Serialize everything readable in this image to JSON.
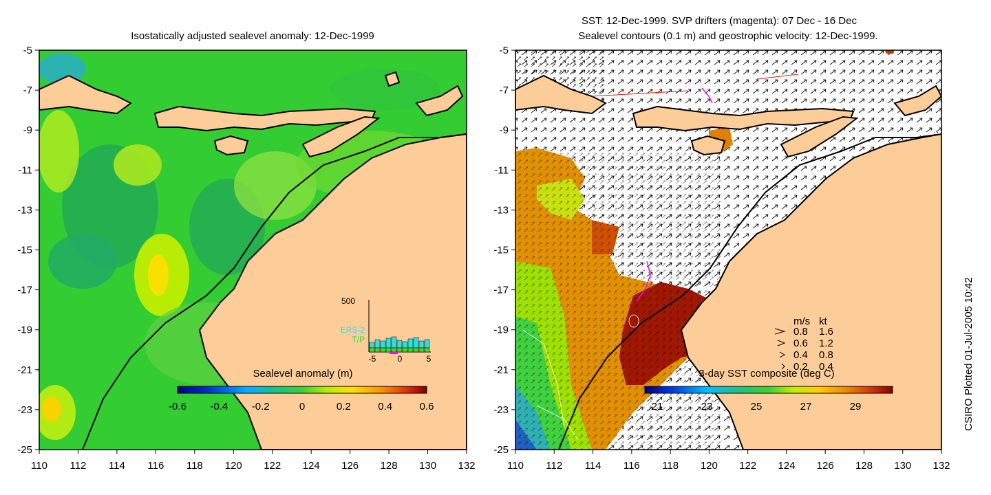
{
  "left_panel": {
    "title": "Isostatically adjusted sealevel anomaly: 12-Dec-1999",
    "colorbar": {
      "label": "Sealevel anomaly (m)",
      "ticks": [
        "-0.6",
        "-0.4",
        "-0.2",
        "0",
        "0.2",
        "0.4",
        "0.6"
      ],
      "range": [
        -0.6,
        0.6
      ]
    },
    "inset": {
      "max_label": "500",
      "series": [
        "ERS-2",
        "T/P"
      ],
      "x_ticks": [
        "-5",
        "0",
        "5"
      ],
      "colors": {
        "ers2": "#33dddd",
        "tp": "#33dd33",
        "marker": "#ff00ff"
      }
    }
  },
  "right_panel": {
    "title_line1": "SST: 12-Dec-1999. SVP drifters (magenta): 07 Dec - 16 Dec",
    "title_line2": "Sealevel contours (0.1 m) and geostrophic velocity: 12-Dec-1999.",
    "colorbar": {
      "label": "3-day SST composite (deg C)",
      "ticks": [
        "21",
        "23",
        "25",
        "27",
        "29"
      ],
      "range": [
        20.5,
        30.5
      ]
    },
    "velocity_legend": {
      "header_ms": "m/s",
      "header_kt": "kt",
      "rows": [
        {
          "ms": "0.8",
          "kt": "1.6"
        },
        {
          "ms": "0.6",
          "kt": "1.2"
        },
        {
          "ms": "0.4",
          "kt": "0.8"
        },
        {
          "ms": "0.2",
          "kt": "0.4"
        }
      ]
    }
  },
  "axes": {
    "lon_ticks": [
      "110",
      "112",
      "114",
      "116",
      "118",
      "120",
      "122",
      "124",
      "126",
      "128",
      "130",
      "132"
    ],
    "lat_ticks": [
      "-5",
      "-7",
      "-9",
      "-11",
      "-13",
      "-15",
      "-17",
      "-19",
      "-21",
      "-23",
      "-25"
    ],
    "lon_range": [
      110,
      132
    ],
    "lat_range": [
      -25,
      -5
    ]
  },
  "side_label": "CSIRO Plotted 01-Jul-2005 10:42",
  "colors": {
    "land": "#fccc99",
    "ocean_left": "#33cc33",
    "coast": "#000000"
  }
}
